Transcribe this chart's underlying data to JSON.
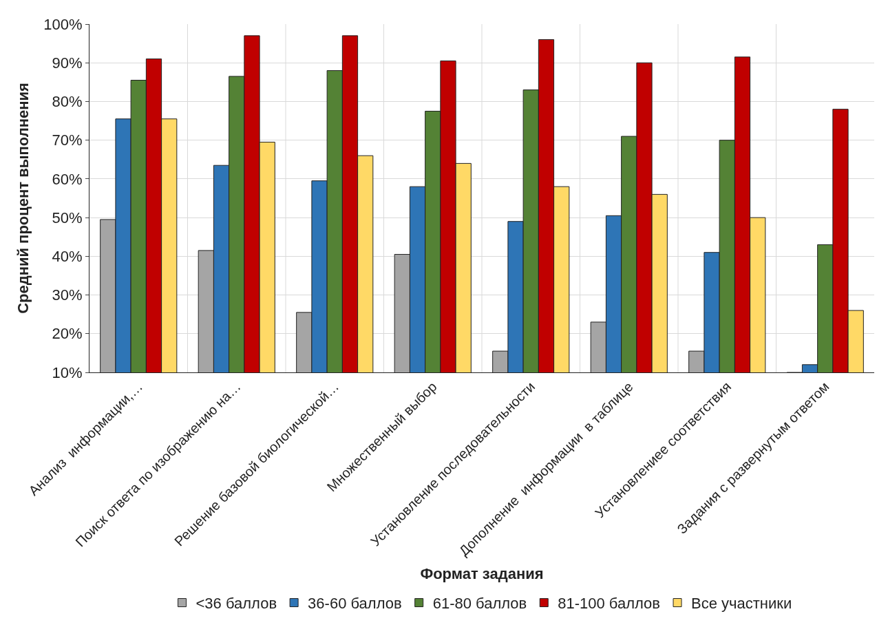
{
  "chart_data": {
    "type": "bar",
    "xlabel": "Формат задания",
    "ylabel": "Средний процент выполнения",
    "categories": [
      "Анализ  информации,…",
      "Поиск ответа по изображению на…",
      "Решение базовой биологической…",
      "Множественный выбор",
      "Установление последовательности",
      "Дополнение  информации  в таблице",
      "Установлениее соответствия",
      "Задания с развернутым ответом"
    ],
    "series": [
      {
        "name": "<36 баллов",
        "color": "#a5a5a5",
        "values": [
          49.5,
          41.5,
          25.5,
          40.5,
          15.5,
          23,
          15.5,
          10
        ]
      },
      {
        "name": "36-60 баллов",
        "color": "#2e75b6",
        "values": [
          75.5,
          63.5,
          59.5,
          58,
          49,
          50.5,
          41,
          12
        ]
      },
      {
        "name": "61-80 баллов",
        "color": "#548235",
        "values": [
          85.5,
          86.5,
          88,
          77.5,
          83,
          71,
          70,
          43
        ]
      },
      {
        "name": "81-100 баллов",
        "color": "#c00000",
        "values": [
          91,
          97,
          97,
          90.5,
          96,
          90,
          91.5,
          78
        ]
      },
      {
        "name": "Все участники",
        "color": "#ffd966",
        "values": [
          75.5,
          69.5,
          66,
          64,
          58,
          56,
          50,
          26
        ]
      }
    ],
    "ylim": [
      10,
      100
    ],
    "yticks": [
      {
        "value": 10,
        "label": "10%"
      },
      {
        "value": 20,
        "label": "20%"
      },
      {
        "value": 30,
        "label": "30%"
      },
      {
        "value": 40,
        "label": "40%"
      },
      {
        "value": 50,
        "label": "50%"
      },
      {
        "value": 60,
        "label": "60%"
      },
      {
        "value": 70,
        "label": "70%"
      },
      {
        "value": 80,
        "label": "80%"
      },
      {
        "value": 90,
        "label": "90%"
      },
      {
        "value": 100,
        "label": "100%"
      }
    ],
    "grid": true,
    "legend": "bottom"
  }
}
